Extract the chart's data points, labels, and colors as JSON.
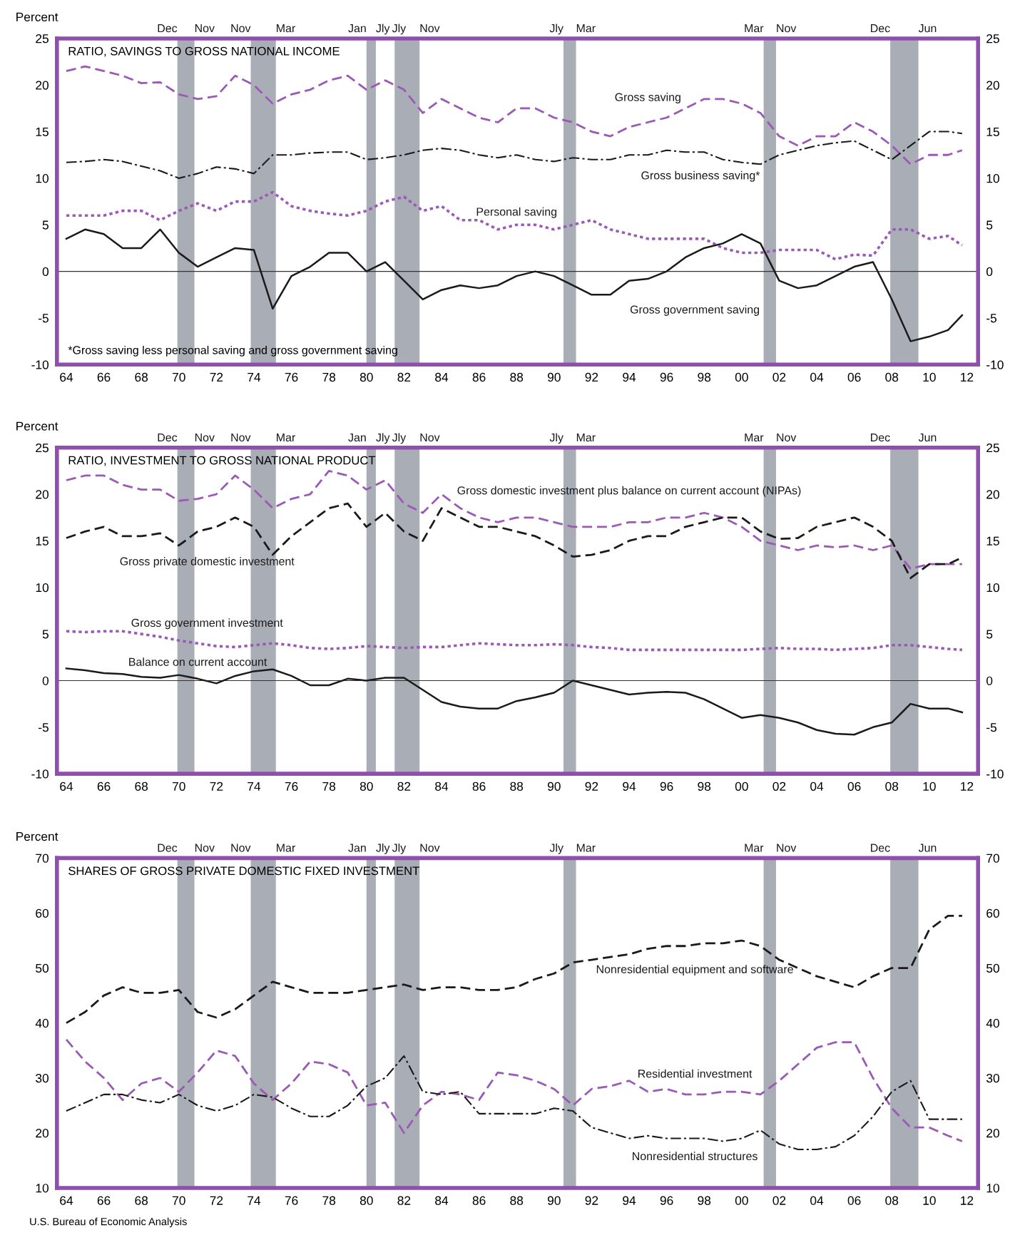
{
  "chart_data": [
    {
      "type": "line",
      "title": "RATIO, SAVINGS TO GROSS NATIONAL INCOME",
      "ylabel": "Percent",
      "x": [
        1964,
        1965,
        1966,
        1967,
        1968,
        1969,
        1970,
        1971,
        1972,
        1973,
        1974,
        1975,
        1976,
        1977,
        1978,
        1979,
        1980,
        1981,
        1982,
        1983,
        1984,
        1985,
        1986,
        1987,
        1988,
        1989,
        1990,
        1991,
        1992,
        1993,
        1994,
        1995,
        1996,
        1997,
        1998,
        1999,
        2000,
        2001,
        2002,
        2003,
        2004,
        2005,
        2006,
        2007,
        2008,
        2009,
        2010,
        2011,
        2011.75
      ],
      "series": [
        {
          "name": "Gross saving",
          "color": "#9b59b6",
          "line_style": "dashed",
          "values": [
            21.5,
            22,
            21.5,
            21,
            20.2,
            20.3,
            19,
            18.5,
            18.8,
            21,
            20,
            18,
            19,
            19.5,
            20.5,
            21,
            19.5,
            20.5,
            19.5,
            17,
            18.5,
            17.5,
            16.5,
            16,
            17.5,
            17.5,
            16.5,
            16,
            15,
            14.5,
            15.5,
            16,
            16.5,
            17.5,
            18.5,
            18.5,
            18,
            17,
            14.5,
            13.5,
            14.5,
            14.5,
            16,
            15,
            13.5,
            11.5,
            12.5,
            12.5,
            13
          ]
        },
        {
          "name": "Gross business saving*",
          "color": "#1a1a1a",
          "line_style": "dashdot",
          "values": [
            11.7,
            11.8,
            12,
            11.8,
            11.3,
            10.8,
            10,
            10.5,
            11.2,
            11,
            10.5,
            12.5,
            12.5,
            12.7,
            12.8,
            12.8,
            12,
            12.2,
            12.5,
            13,
            13.2,
            13,
            12.5,
            12.2,
            12.5,
            12,
            11.8,
            12.2,
            12,
            12,
            12.5,
            12.5,
            13,
            12.8,
            12.8,
            12,
            11.7,
            11.5,
            12.5,
            13,
            13.5,
            13.8,
            14,
            13,
            12,
            13.5,
            15,
            15,
            14.8
          ]
        },
        {
          "name": "Personal saving",
          "color": "#9b59b6",
          "line_style": "dotted",
          "values": [
            6,
            6,
            6,
            6.5,
            6.5,
            5.5,
            6.5,
            7.3,
            6.5,
            7.5,
            7.5,
            8.5,
            7,
            6.5,
            6.2,
            6,
            6.5,
            7.5,
            8,
            6.5,
            7,
            5.5,
            5.5,
            4.5,
            5,
            5,
            4.5,
            5,
            5.5,
            4.5,
            4,
            3.5,
            3.5,
            3.5,
            3.5,
            2.5,
            2,
            2,
            2.3,
            2.3,
            2.3,
            1.3,
            1.8,
            1.7,
            4.5,
            4.5,
            3.5,
            3.8,
            2.8
          ]
        },
        {
          "name": "Gross government saving",
          "color": "#1a1a1a",
          "line_style": "solid",
          "values": [
            3.5,
            4.5,
            4,
            2.5,
            2.5,
            4.5,
            2,
            0.5,
            1.5,
            2.5,
            2.3,
            -4,
            -0.5,
            0.5,
            2,
            2,
            0,
            1,
            -1,
            -3,
            -2,
            -1.5,
            -1.8,
            -1.5,
            -0.5,
            0,
            -0.5,
            -1.5,
            -2.5,
            -2.5,
            -1,
            -0.8,
            0,
            1.5,
            2.5,
            3,
            4,
            3,
            -1,
            -1.8,
            -1.5,
            -0.5,
            0.5,
            1,
            -3,
            -7.5,
            -7,
            -6.3,
            -4.7
          ]
        }
      ],
      "xlim": [
        1963.5,
        2012.6
      ],
      "xticks": [
        {
          "value": 1964,
          "label": "64"
        },
        {
          "value": 1966,
          "label": "66"
        },
        {
          "value": 1968,
          "label": "68"
        },
        {
          "value": 1970,
          "label": "70"
        },
        {
          "value": 1972,
          "label": "72"
        },
        {
          "value": 1974,
          "label": "74"
        },
        {
          "value": 1976,
          "label": "76"
        },
        {
          "value": 1978,
          "label": "78"
        },
        {
          "value": 1980,
          "label": "80"
        },
        {
          "value": 1982,
          "label": "82"
        },
        {
          "value": 1984,
          "label": "84"
        },
        {
          "value": 1986,
          "label": "86"
        },
        {
          "value": 1988,
          "label": "88"
        },
        {
          "value": 1990,
          "label": "90"
        },
        {
          "value": 1992,
          "label": "92"
        },
        {
          "value": 1994,
          "label": "94"
        },
        {
          "value": 1996,
          "label": "96"
        },
        {
          "value": 1998,
          "label": "98"
        },
        {
          "value": 2000,
          "label": "00"
        },
        {
          "value": 2002,
          "label": "02"
        },
        {
          "value": 2004,
          "label": "04"
        },
        {
          "value": 2006,
          "label": "06"
        },
        {
          "value": 2008,
          "label": "08"
        },
        {
          "value": 2010,
          "label": "10"
        },
        {
          "value": 2012,
          "label": "12"
        }
      ],
      "ylim": [
        -10,
        25
      ],
      "yticks": [
        -10,
        -5,
        0,
        5,
        10,
        15,
        20,
        25
      ],
      "y2lim": [
        -10,
        25
      ],
      "y2ticks": [
        -10,
        -5,
        0,
        5,
        10,
        15,
        20,
        25
      ],
      "grid": false,
      "ref_lines": [
        {
          "axis": "y",
          "value": 0,
          "color": "#333333"
        }
      ],
      "bands": [
        {
          "axis": "x",
          "from": 1969.92,
          "to": 1970.83,
          "color": "#a9adb5"
        },
        {
          "axis": "x",
          "from": 1973.83,
          "to": 1975.17,
          "color": "#a9adb5"
        },
        {
          "axis": "x",
          "from": 1980.0,
          "to": 1980.5,
          "color": "#a9adb5"
        },
        {
          "axis": "x",
          "from": 1981.5,
          "to": 1982.83,
          "color": "#a9adb5"
        },
        {
          "axis": "x",
          "from": 1990.5,
          "to": 1991.17,
          "color": "#a9adb5"
        },
        {
          "axis": "x",
          "from": 2001.17,
          "to": 2001.83,
          "color": "#a9adb5"
        },
        {
          "axis": "x",
          "from": 2007.92,
          "to": 2009.42,
          "color": "#a9adb5"
        }
      ],
      "annotations": [
        "Dec",
        "Nov",
        "Nov",
        "Mar",
        "Jan",
        "Jly",
        "Jly",
        "Nov",
        "Jly",
        "Mar",
        "Mar",
        "Nov",
        "Dec",
        "Jun",
        "*Gross saving less personal saving and gross government saving"
      ]
    },
    {
      "type": "line",
      "title": "RATIO, INVESTMENT TO GROSS NATIONAL PRODUCT",
      "ylabel": "Percent",
      "x": [
        1964,
        1965,
        1966,
        1967,
        1968,
        1969,
        1970,
        1971,
        1972,
        1973,
        1974,
        1975,
        1976,
        1977,
        1978,
        1979,
        1980,
        1981,
        1982,
        1983,
        1984,
        1985,
        1986,
        1987,
        1988,
        1989,
        1990,
        1991,
        1992,
        1993,
        1994,
        1995,
        1996,
        1997,
        1998,
        1999,
        2000,
        2001,
        2002,
        2003,
        2004,
        2005,
        2006,
        2007,
        2008,
        2009,
        2010,
        2011,
        2011.75
      ],
      "series": [
        {
          "name": "Gross domestic investment plus balance on current account (NIPAs)",
          "color": "#9b59b6",
          "line_style": "dashed",
          "values": [
            21.5,
            22,
            22,
            21,
            20.5,
            20.5,
            19.3,
            19.5,
            20,
            22,
            20.5,
            18.5,
            19.5,
            20,
            22.5,
            22,
            20.5,
            21.5,
            19,
            18,
            20,
            18.5,
            17.5,
            17,
            17.5,
            17.5,
            17,
            16.5,
            16.5,
            16.5,
            17,
            17,
            17.5,
            17.5,
            18,
            17.5,
            16.5,
            15,
            14.5,
            14,
            14.5,
            14.3,
            14.5,
            14,
            14.5,
            12,
            12.5,
            12.5,
            12.5
          ]
        },
        {
          "name": "Gross private domestic investment",
          "color": "#1a1a1a",
          "line_style": "dashed",
          "values": [
            15.3,
            16,
            16.5,
            15.5,
            15.5,
            15.8,
            14.5,
            16,
            16.5,
            17.5,
            16.5,
            13.5,
            15.5,
            17,
            18.5,
            19,
            16.5,
            18,
            16,
            15,
            18.5,
            17.5,
            16.5,
            16.5,
            16,
            15.5,
            14.5,
            13.3,
            13.5,
            14,
            15,
            15.5,
            15.5,
            16.5,
            17,
            17.5,
            17.5,
            16,
            15.2,
            15.3,
            16.5,
            17,
            17.5,
            16.5,
            15,
            11,
            12.5,
            12.5,
            13.2
          ]
        },
        {
          "name": "Gross government investment",
          "color": "#9b59b6",
          "line_style": "dotted",
          "values": [
            5.3,
            5.2,
            5.3,
            5.3,
            5,
            4.7,
            4.3,
            4,
            3.7,
            3.6,
            3.8,
            4,
            3.8,
            3.5,
            3.4,
            3.5,
            3.7,
            3.6,
            3.5,
            3.6,
            3.6,
            3.8,
            4,
            3.9,
            3.8,
            3.8,
            3.9,
            3.8,
            3.6,
            3.5,
            3.3,
            3.3,
            3.3,
            3.3,
            3.3,
            3.3,
            3.3,
            3.4,
            3.5,
            3.4,
            3.4,
            3.3,
            3.4,
            3.5,
            3.8,
            3.8,
            3.6,
            3.4,
            3.3
          ]
        },
        {
          "name": "Balance on current account",
          "color": "#1a1a1a",
          "line_style": "solid",
          "values": [
            1.3,
            1.1,
            0.8,
            0.7,
            0.4,
            0.3,
            0.6,
            0.2,
            -0.3,
            0.5,
            1,
            1.2,
            0.5,
            -0.5,
            -0.5,
            0.2,
            0,
            0.3,
            0.3,
            -1,
            -2.3,
            -2.8,
            -3,
            -3,
            -2.2,
            -1.8,
            -1.3,
            0,
            -0.5,
            -1,
            -1.5,
            -1.3,
            -1.2,
            -1.3,
            -2,
            -3,
            -4,
            -3.7,
            -4,
            -4.5,
            -5.3,
            -5.7,
            -5.8,
            -5,
            -4.5,
            -2.5,
            -3,
            -3,
            -3.4
          ]
        }
      ],
      "xlim": [
        1963.5,
        2012.6
      ],
      "xticks": [
        {
          "value": 1964,
          "label": "64"
        },
        {
          "value": 1966,
          "label": "66"
        },
        {
          "value": 1968,
          "label": "68"
        },
        {
          "value": 1970,
          "label": "70"
        },
        {
          "value": 1972,
          "label": "72"
        },
        {
          "value": 1974,
          "label": "74"
        },
        {
          "value": 1976,
          "label": "76"
        },
        {
          "value": 1978,
          "label": "78"
        },
        {
          "value": 1980,
          "label": "80"
        },
        {
          "value": 1982,
          "label": "82"
        },
        {
          "value": 1984,
          "label": "84"
        },
        {
          "value": 1986,
          "label": "86"
        },
        {
          "value": 1988,
          "label": "88"
        },
        {
          "value": 1990,
          "label": "90"
        },
        {
          "value": 1992,
          "label": "92"
        },
        {
          "value": 1994,
          "label": "94"
        },
        {
          "value": 1996,
          "label": "96"
        },
        {
          "value": 1998,
          "label": "98"
        },
        {
          "value": 2000,
          "label": "00"
        },
        {
          "value": 2002,
          "label": "02"
        },
        {
          "value": 2004,
          "label": "04"
        },
        {
          "value": 2006,
          "label": "06"
        },
        {
          "value": 2008,
          "label": "08"
        },
        {
          "value": 2010,
          "label": "10"
        },
        {
          "value": 2012,
          "label": "12"
        }
      ],
      "ylim": [
        -10,
        25
      ],
      "yticks": [
        -10,
        -5,
        0,
        5,
        10,
        15,
        20,
        25
      ],
      "y2lim": [
        -10,
        25
      ],
      "y2ticks": [
        -10,
        -5,
        0,
        5,
        10,
        15,
        20,
        25
      ],
      "grid": false,
      "ref_lines": [
        {
          "axis": "y",
          "value": 0,
          "color": "#333333"
        }
      ],
      "bands": [
        {
          "axis": "x",
          "from": 1969.92,
          "to": 1970.83,
          "color": "#a9adb5"
        },
        {
          "axis": "x",
          "from": 1973.83,
          "to": 1975.17,
          "color": "#a9adb5"
        },
        {
          "axis": "x",
          "from": 1980.0,
          "to": 1980.5,
          "color": "#a9adb5"
        },
        {
          "axis": "x",
          "from": 1981.5,
          "to": 1982.83,
          "color": "#a9adb5"
        },
        {
          "axis": "x",
          "from": 1990.5,
          "to": 1991.17,
          "color": "#a9adb5"
        },
        {
          "axis": "x",
          "from": 2001.17,
          "to": 2001.83,
          "color": "#a9adb5"
        },
        {
          "axis": "x",
          "from": 2007.92,
          "to": 2009.42,
          "color": "#a9adb5"
        }
      ],
      "annotations": [
        "Dec",
        "Nov",
        "Nov",
        "Mar",
        "Jan",
        "Jly",
        "Jly",
        "Nov",
        "Jly",
        "Mar",
        "Mar",
        "Nov",
        "Dec",
        "Jun"
      ]
    },
    {
      "type": "line",
      "title": "SHARES OF GROSS PRIVATE DOMESTIC FIXED INVESTMENT",
      "ylabel": "Percent",
      "x": [
        1964,
        1965,
        1966,
        1967,
        1968,
        1969,
        1970,
        1971,
        1972,
        1973,
        1974,
        1975,
        1976,
        1977,
        1978,
        1979,
        1980,
        1981,
        1982,
        1983,
        1984,
        1985,
        1986,
        1987,
        1988,
        1989,
        1990,
        1991,
        1992,
        1993,
        1994,
        1995,
        1996,
        1997,
        1998,
        1999,
        2000,
        2001,
        2002,
        2003,
        2004,
        2005,
        2006,
        2007,
        2008,
        2009,
        2010,
        2011,
        2011.75
      ],
      "series": [
        {
          "name": "Nonresidential equipment and software",
          "color": "#1a1a1a",
          "line_style": "dashed",
          "values": [
            40,
            42,
            45,
            46.5,
            45.5,
            45.5,
            46,
            42,
            41,
            42.5,
            45,
            47.5,
            46.5,
            45.5,
            45.5,
            45.5,
            46,
            46.5,
            47,
            46,
            46.5,
            46.5,
            46,
            46,
            46.5,
            48,
            49,
            51,
            51.5,
            52,
            52.5,
            53.5,
            54,
            54,
            54.5,
            54.5,
            55,
            54,
            51.5,
            50,
            48.5,
            47.5,
            46.5,
            48.5,
            50,
            50,
            57,
            59.5,
            59.5
          ]
        },
        {
          "name": "Residential investment",
          "color": "#9b59b6",
          "line_style": "dashed",
          "values": [
            37,
            33,
            30,
            26,
            29,
            30,
            27.5,
            31,
            35,
            34,
            29,
            26,
            29,
            33,
            32.5,
            31,
            25,
            25.5,
            20,
            25,
            27.5,
            27,
            26,
            31,
            30.5,
            29.5,
            28,
            25,
            28,
            28.5,
            29.5,
            27.5,
            28,
            27,
            27,
            27.5,
            27.5,
            27,
            29.5,
            32.5,
            35.5,
            36.5,
            36.5,
            30,
            24.5,
            21,
            21,
            19.5,
            18.5
          ]
        },
        {
          "name": "Nonresidential structures",
          "color": "#1a1a1a",
          "line_style": "dashdot",
          "values": [
            24,
            25.5,
            27,
            27,
            26,
            25.5,
            27,
            25,
            24,
            25,
            27,
            26.5,
            24.5,
            23,
            23,
            25,
            28.5,
            30,
            34,
            27.5,
            27,
            27.5,
            23.5,
            23.5,
            23.5,
            23.5,
            24.5,
            24,
            21,
            20,
            19,
            19.5,
            19,
            19,
            19,
            18.5,
            19,
            20.5,
            18,
            17,
            17,
            17.5,
            19.5,
            23,
            27.5,
            29.5,
            22.5,
            22.5,
            22.5
          ]
        }
      ],
      "xlim": [
        1963.5,
        2012.6
      ],
      "xticks": [
        {
          "value": 1964,
          "label": "64"
        },
        {
          "value": 1966,
          "label": "66"
        },
        {
          "value": 1968,
          "label": "68"
        },
        {
          "value": 1970,
          "label": "70"
        },
        {
          "value": 1972,
          "label": "72"
        },
        {
          "value": 1974,
          "label": "74"
        },
        {
          "value": 1976,
          "label": "76"
        },
        {
          "value": 1978,
          "label": "78"
        },
        {
          "value": 1980,
          "label": "80"
        },
        {
          "value": 1982,
          "label": "82"
        },
        {
          "value": 1984,
          "label": "84"
        },
        {
          "value": 1986,
          "label": "86"
        },
        {
          "value": 1988,
          "label": "88"
        },
        {
          "value": 1990,
          "label": "90"
        },
        {
          "value": 1992,
          "label": "92"
        },
        {
          "value": 1994,
          "label": "94"
        },
        {
          "value": 1996,
          "label": "96"
        },
        {
          "value": 1998,
          "label": "98"
        },
        {
          "value": 2000,
          "label": "00"
        },
        {
          "value": 2002,
          "label": "02"
        },
        {
          "value": 2004,
          "label": "04"
        },
        {
          "value": 2006,
          "label": "06"
        },
        {
          "value": 2008,
          "label": "08"
        },
        {
          "value": 2010,
          "label": "10"
        },
        {
          "value": 2012,
          "label": "12"
        }
      ],
      "ylim": [
        10,
        70
      ],
      "yticks": [
        10,
        20,
        30,
        40,
        50,
        60,
        70
      ],
      "y2lim": [
        10,
        70
      ],
      "y2ticks": [
        10,
        20,
        30,
        40,
        50,
        60,
        70
      ],
      "grid": false,
      "bands": [
        {
          "axis": "x",
          "from": 1969.92,
          "to": 1970.83,
          "color": "#a9adb5"
        },
        {
          "axis": "x",
          "from": 1973.83,
          "to": 1975.17,
          "color": "#a9adb5"
        },
        {
          "axis": "x",
          "from": 1980.0,
          "to": 1980.5,
          "color": "#a9adb5"
        },
        {
          "axis": "x",
          "from": 1981.5,
          "to": 1982.83,
          "color": "#a9adb5"
        },
        {
          "axis": "x",
          "from": 1990.5,
          "to": 1991.17,
          "color": "#a9adb5"
        },
        {
          "axis": "x",
          "from": 2001.17,
          "to": 2001.83,
          "color": "#a9adb5"
        },
        {
          "axis": "x",
          "from": 2007.92,
          "to": 2009.42,
          "color": "#a9adb5"
        }
      ],
      "annotations": [
        "Dec",
        "Nov",
        "Nov",
        "Mar",
        "Jan",
        "Jly",
        "Jly",
        "Nov",
        "Jly",
        "Mar",
        "Mar",
        "Nov",
        "Dec",
        "Jun",
        "U.S. Bureau of Economic Analysis"
      ]
    }
  ]
}
